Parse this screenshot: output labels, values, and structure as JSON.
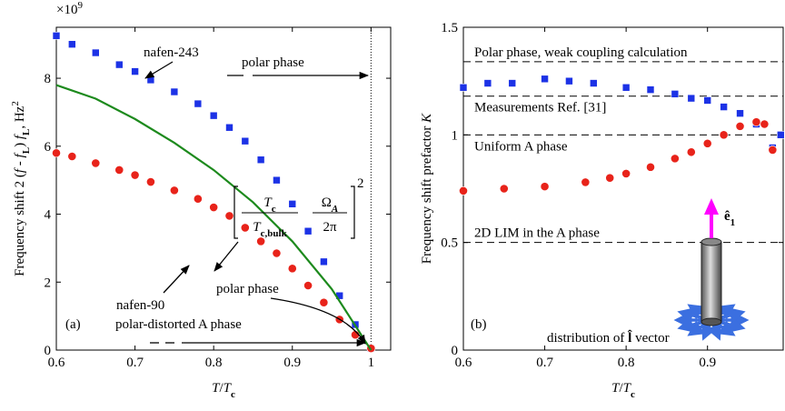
{
  "chart_data": [
    {
      "type": "scatter",
      "multiplier": [
        "×10",
        "9"
      ],
      "ylabel": [
        "Frequency shift  2 (",
        "f",
        " - ",
        "f",
        "L",
        ") ",
        "f",
        "L",
        ", Hz",
        "2"
      ],
      "xlabel": [
        "T",
        "/",
        "T",
        "c"
      ],
      "xlim": [
        0.6,
        1.025
      ],
      "ylim": [
        0,
        9.5
      ],
      "xticks": [
        0.6,
        0.7,
        0.8,
        0.9,
        1
      ],
      "yticks": [
        0,
        2,
        4,
        6,
        8
      ],
      "vline": 1,
      "series": [
        {
          "name": "nafen-243",
          "marker": "square",
          "color": "#1c32e6",
          "x": [
            0.6,
            0.62,
            0.65,
            0.68,
            0.7,
            0.72,
            0.75,
            0.78,
            0.8,
            0.82,
            0.84,
            0.86,
            0.88,
            0.9,
            0.92,
            0.94,
            0.96,
            0.98,
            1.0
          ],
          "values": [
            9.25,
            9.0,
            8.75,
            8.4,
            8.2,
            7.95,
            7.6,
            7.25,
            6.9,
            6.55,
            6.15,
            5.6,
            5.0,
            4.3,
            3.5,
            2.6,
            1.6,
            0.75,
            0.05
          ]
        },
        {
          "name": "nafen-90",
          "marker": "circle",
          "color": "#e8231a",
          "x": [
            0.6,
            0.62,
            0.65,
            0.68,
            0.7,
            0.72,
            0.75,
            0.78,
            0.8,
            0.82,
            0.84,
            0.86,
            0.88,
            0.9,
            0.92,
            0.94,
            0.96,
            0.98,
            1.0
          ],
          "values": [
            5.8,
            5.7,
            5.5,
            5.3,
            5.15,
            4.95,
            4.7,
            4.45,
            4.2,
            3.95,
            3.6,
            3.2,
            2.85,
            2.4,
            1.9,
            1.4,
            0.9,
            0.45,
            0.05
          ]
        },
        {
          "marker": "line",
          "color": "#1d8a1d",
          "x": [
            0.6,
            0.65,
            0.7,
            0.75,
            0.8,
            0.85,
            0.9,
            0.95,
            1.0
          ],
          "values": [
            7.8,
            7.4,
            6.8,
            6.1,
            5.3,
            4.35,
            3.2,
            1.8,
            0
          ]
        }
      ],
      "formula": {
        "num1": [
          "T",
          "c"
        ],
        "den1": [
          "T",
          "c,bulk"
        ],
        "num2": [
          "Ω",
          "A"
        ],
        "den2": "2π",
        "power": "2"
      },
      "annotations": [
        "polar phase",
        "polar phase",
        "polar-distorted A phase",
        "(a)"
      ]
    },
    {
      "type": "scatter",
      "ylabel": [
        "Frequency shift prefactor ",
        "K"
      ],
      "xlabel": [
        "T",
        "/",
        "T",
        "c"
      ],
      "xlim": [
        0.6,
        0.993
      ],
      "ylim": [
        0,
        1.5
      ],
      "xticks": [
        0.6,
        0.7,
        0.8,
        0.9
      ],
      "yticks": [
        0,
        0.5,
        1,
        1.5
      ],
      "series": [
        {
          "marker": "square",
          "color": "#1c32e6",
          "x": [
            0.6,
            0.63,
            0.66,
            0.7,
            0.73,
            0.76,
            0.8,
            0.83,
            0.86,
            0.88,
            0.9,
            0.92,
            0.94,
            0.96,
            0.98,
            0.99
          ],
          "values": [
            1.22,
            1.24,
            1.24,
            1.26,
            1.25,
            1.24,
            1.22,
            1.21,
            1.19,
            1.17,
            1.16,
            1.13,
            1.1,
            1.05,
            0.94,
            1.0
          ]
        },
        {
          "marker": "circle",
          "color": "#e8231a",
          "x": [
            0.6,
            0.65,
            0.7,
            0.75,
            0.78,
            0.8,
            0.83,
            0.86,
            0.88,
            0.9,
            0.92,
            0.94,
            0.96,
            0.97,
            0.98
          ],
          "values": [
            0.74,
            0.75,
            0.76,
            0.78,
            0.8,
            0.82,
            0.85,
            0.89,
            0.92,
            0.96,
            1.0,
            1.04,
            1.06,
            1.05,
            0.93
          ]
        }
      ],
      "hlines": [
        {
          "value": 1.34,
          "label": "Polar phase, weak coupling calculation"
        },
        {
          "value": 1.18,
          "label": "Measurements Ref. [31]"
        },
        {
          "value": 1,
          "label": "Uniform A phase"
        },
        {
          "value": 0.5,
          "label": "2D LIM in the A phase"
        }
      ],
      "annotations": [
        "(b)"
      ],
      "inset": {
        "text": [
          "distribution of ",
          "l̂",
          " vector"
        ],
        "vector": [
          "ê",
          "1"
        ]
      }
    }
  ]
}
